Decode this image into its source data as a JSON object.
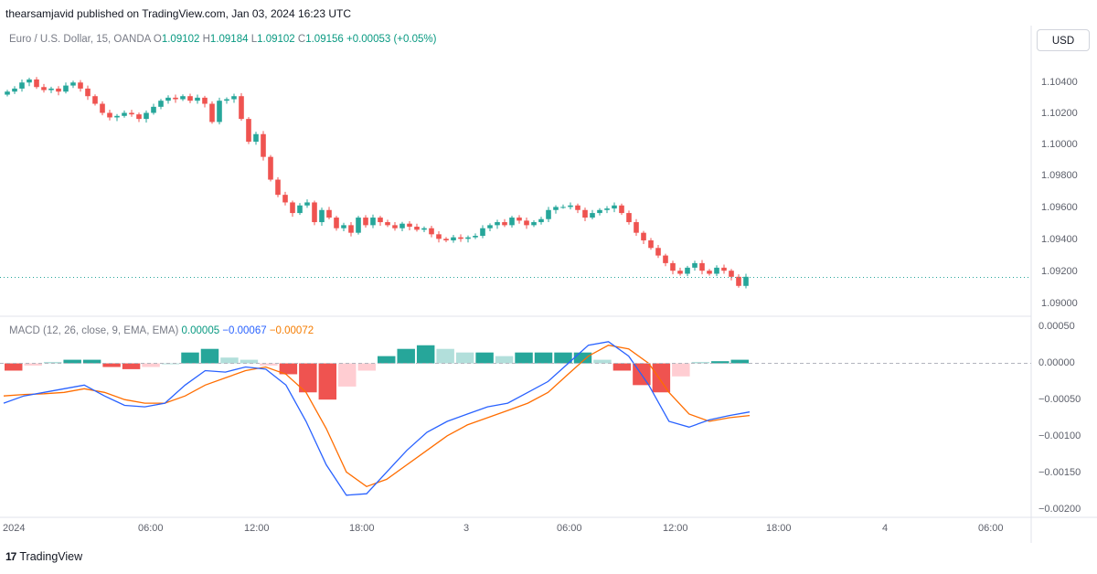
{
  "publisher": {
    "text": "thearsamjavid published on TradingView.com, Jan 03, 2024 16:23 UTC"
  },
  "legend": {
    "symbol": "Euro / U.S. Dollar, 15, OANDA",
    "o_label": "O",
    "o_value": "1.09102",
    "h_label": "H",
    "h_value": "1.09184",
    "l_label": "L",
    "l_value": "1.09102",
    "c_label": "C",
    "c_value": "1.09156",
    "change": "+0.00053 (+0.05%)"
  },
  "macd_legend": {
    "name": "MACD (12, 26, close, 9, EMA, EMA)",
    "hist": "0.00005",
    "macd": "−0.00067",
    "signal": "−0.00072"
  },
  "currency_button": "USD",
  "price_axis": [
    "1.10400",
    "1.10200",
    "1.10000",
    "1.09800",
    "1.09600",
    "1.09400",
    "1.09200",
    "1.09000"
  ],
  "macd_axis": [
    "0.00050",
    "0.00000",
    "−0.00050",
    "−0.00100",
    "−0.00150",
    "−0.00200"
  ],
  "time_axis": [
    "2024",
    "06:00",
    "12:00",
    "18:00",
    "3",
    "06:00",
    "12:00",
    "18:00",
    "4",
    "06:00"
  ],
  "footer": {
    "logo": "17",
    "brand": "TradingView"
  },
  "colors": {
    "up": "#26a69a",
    "down": "#ef5350",
    "macd": "#2962ff",
    "signal": "#ff6d00",
    "hist_up_strong": "#26a69a",
    "hist_up_weak": "#b2dfdb",
    "hist_down_strong": "#ef5350",
    "hist_down_weak": "#ffcdd2"
  },
  "chart_data": [
    {
      "type": "candlestick",
      "title": "Euro / U.S. Dollar, 15, OANDA",
      "ylim": [
        1.089,
        1.1055
      ],
      "last_price": 1.09156,
      "candles_close": [
        1.1038,
        1.104,
        1.1044,
        1.1046,
        1.1041,
        1.1039,
        1.104,
        1.1038,
        1.1042,
        1.1044,
        1.104,
        1.1035,
        1.103,
        1.1024,
        1.1021,
        1.1022,
        1.1024,
        1.1023,
        1.102,
        1.1024,
        1.1028,
        1.1032,
        1.1034,
        1.1033,
        1.1035,
        1.1032,
        1.1034,
        1.103,
        1.1018,
        1.1032,
        1.1033,
        1.1035,
        1.102,
        1.1005,
        1.101,
        1.0995,
        1.098,
        1.097,
        1.0965,
        1.0958,
        1.0963,
        1.0965,
        1.0952,
        1.096,
        1.0955,
        1.0948,
        1.095,
        1.0945,
        1.0955,
        1.095,
        1.0955,
        1.0952,
        1.095,
        1.0948,
        1.0951,
        1.0949,
        1.0947,
        1.0948,
        1.0944,
        1.0941,
        1.094,
        1.0942,
        1.0941,
        1.0942,
        1.0943,
        1.0948,
        1.095,
        1.0952,
        1.095,
        1.0955,
        1.0953,
        1.095,
        1.0952,
        1.0954,
        1.096,
        1.0962,
        1.0962,
        1.0963,
        1.096,
        1.0955,
        1.0958,
        1.096,
        1.0961,
        1.0963,
        1.0958,
        1.0952,
        1.0945,
        1.094,
        1.0935,
        1.093,
        1.0925,
        1.092,
        1.0918,
        1.0922,
        1.0925,
        1.092,
        1.0918,
        1.0922,
        1.092,
        1.0916,
        1.091,
        1.0916
      ],
      "ylabel": ""
    },
    {
      "type": "macd",
      "title": "MACD (12, 26, close, 9, EMA, EMA)",
      "ylim": [
        -0.0021,
        0.0006
      ],
      "macd": [
        -0.00055,
        -0.00045,
        -0.0004,
        -0.00035,
        -0.0003,
        -0.00045,
        -0.00058,
        -0.0006,
        -0.00055,
        -0.0003,
        -0.0001,
        -0.00012,
        -5e-05,
        -8e-05,
        -0.0003,
        -0.0008,
        -0.0014,
        -0.00182,
        -0.0018,
        -0.0015,
        -0.0012,
        -0.00095,
        -0.0008,
        -0.0007,
        -0.0006,
        -0.00055,
        -0.0004,
        -0.00025,
        0.0,
        0.00025,
        0.0003,
        0.0001,
        -0.0003,
        -0.0008,
        -0.00088,
        -0.00078,
        -0.00072,
        -0.00067
      ],
      "signal": [
        -0.00045,
        -0.00043,
        -0.00042,
        -0.0004,
        -0.00035,
        -0.0004,
        -0.0005,
        -0.00055,
        -0.00055,
        -0.00045,
        -0.0003,
        -0.0002,
        -0.0001,
        -5e-05,
        -0.00015,
        -0.0004,
        -0.0009,
        -0.0015,
        -0.0017,
        -0.0016,
        -0.0014,
        -0.0012,
        -0.001,
        -0.00085,
        -0.00075,
        -0.00065,
        -0.00055,
        -0.0004,
        -0.00015,
        0.0001,
        0.00025,
        0.0002,
        0.0,
        -0.0004,
        -0.0007,
        -0.0008,
        -0.00075,
        -0.00072
      ],
      "histogram": [
        -0.0001,
        -3e-05,
        2e-05,
        5e-05,
        5e-05,
        -5e-05,
        -8e-05,
        -5e-05,
        0.0,
        0.00015,
        0.0002,
        8e-05,
        5e-05,
        -3e-05,
        -0.00015,
        -0.0004,
        -0.0005,
        -0.00032,
        -0.0001,
        0.0001,
        0.0002,
        0.00025,
        0.0002,
        0.00015,
        0.00015,
        0.0001,
        0.00015,
        0.00015,
        0.00015,
        0.00015,
        5e-05,
        -0.0001,
        -0.0003,
        -0.0004,
        -0.00018,
        2e-05,
        3e-05,
        5e-05
      ]
    }
  ]
}
